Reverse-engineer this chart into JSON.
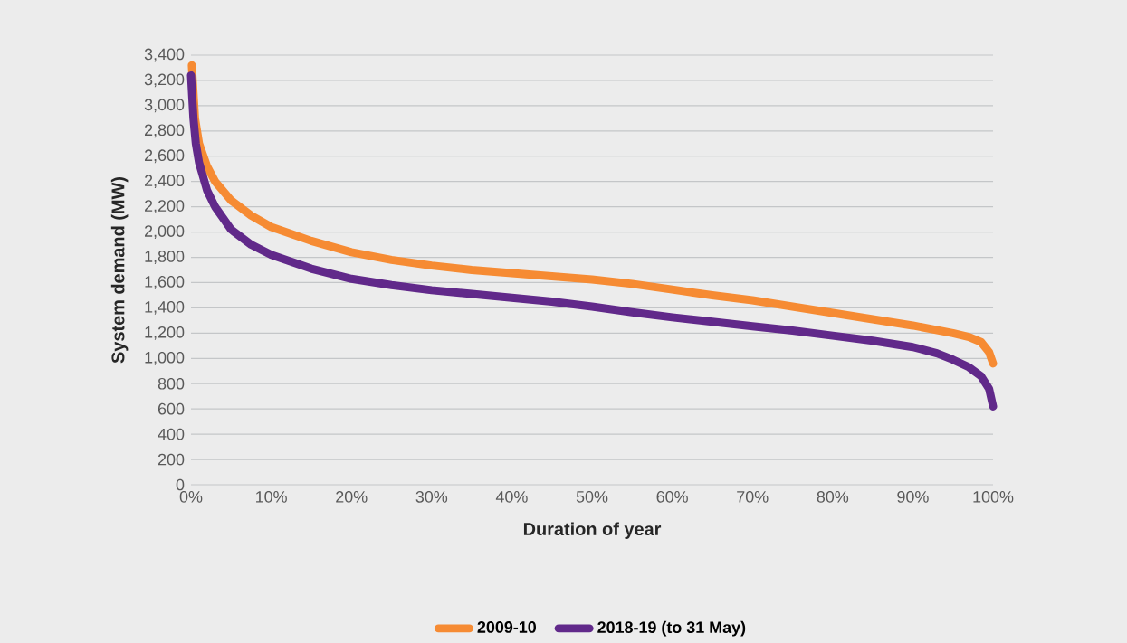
{
  "chart_data": {
    "type": "line",
    "xlabel": "Duration of year",
    "ylabel": "System demand (MW)",
    "xlim": [
      0,
      100
    ],
    "xticks": [
      {
        "value": 0,
        "label": "0%"
      },
      {
        "value": 10,
        "label": "10%"
      },
      {
        "value": 20,
        "label": "20%"
      },
      {
        "value": 30,
        "label": "30%"
      },
      {
        "value": 40,
        "label": "40%"
      },
      {
        "value": 50,
        "label": "50%"
      },
      {
        "value": 60,
        "label": "60%"
      },
      {
        "value": 70,
        "label": "70%"
      },
      {
        "value": 80,
        "label": "80%"
      },
      {
        "value": 90,
        "label": "90%"
      },
      {
        "value": 100,
        "label": "100%"
      }
    ],
    "ylim": [
      0,
      3400
    ],
    "yticks": [
      0,
      200,
      400,
      600,
      800,
      {
        "value": 1000,
        "label": "1,000"
      },
      {
        "value": 1200,
        "label": "1,200"
      },
      {
        "value": 1400,
        "label": "1,400"
      },
      {
        "value": 1600,
        "label": "1,600"
      },
      {
        "value": 1800,
        "label": "1,800"
      },
      {
        "value": 2000,
        "label": "2,000"
      },
      {
        "value": 2200,
        "label": "2,200"
      },
      {
        "value": 2400,
        "label": "2,400"
      },
      {
        "value": 2600,
        "label": "2,600"
      },
      {
        "value": 2800,
        "label": "2,800"
      },
      {
        "value": 3000,
        "label": "3,000"
      },
      {
        "value": 3200,
        "label": "3,200"
      },
      {
        "value": 3400,
        "label": "3,400"
      }
    ],
    "grid": "y",
    "legend": "bottom",
    "marker": "none",
    "line_style": "solid",
    "series": [
      {
        "name": "2009-10",
        "color": "#f68b33",
        "x": [
          0.1,
          0.5,
          1,
          2,
          3,
          5,
          7.5,
          10,
          15,
          20,
          25,
          30,
          35,
          40,
          45,
          50,
          55,
          60,
          65,
          70,
          75,
          80,
          85,
          90,
          95,
          97,
          98.5,
          99.5,
          100
        ],
        "values": [
          3320,
          2900,
          2700,
          2520,
          2400,
          2250,
          2130,
          2040,
          1930,
          1840,
          1780,
          1735,
          1700,
          1675,
          1650,
          1625,
          1590,
          1545,
          1500,
          1460,
          1410,
          1360,
          1310,
          1260,
          1200,
          1170,
          1130,
          1050,
          960
        ]
      },
      {
        "name": "2018-19 (to 31 May)",
        "color": "#61298a",
        "x": [
          0,
          0.3,
          0.6,
          1,
          2,
          3,
          5,
          7.5,
          10,
          15,
          20,
          25,
          30,
          35,
          40,
          45,
          50,
          55,
          60,
          65,
          70,
          75,
          80,
          85,
          90,
          93,
          95,
          97,
          98.5,
          99.5,
          100
        ],
        "values": [
          3240,
          2900,
          2700,
          2550,
          2330,
          2200,
          2020,
          1900,
          1820,
          1710,
          1630,
          1580,
          1540,
          1510,
          1480,
          1450,
          1410,
          1365,
          1325,
          1290,
          1255,
          1220,
          1180,
          1140,
          1090,
          1040,
          990,
          930,
          860,
          760,
          620
        ]
      }
    ]
  }
}
